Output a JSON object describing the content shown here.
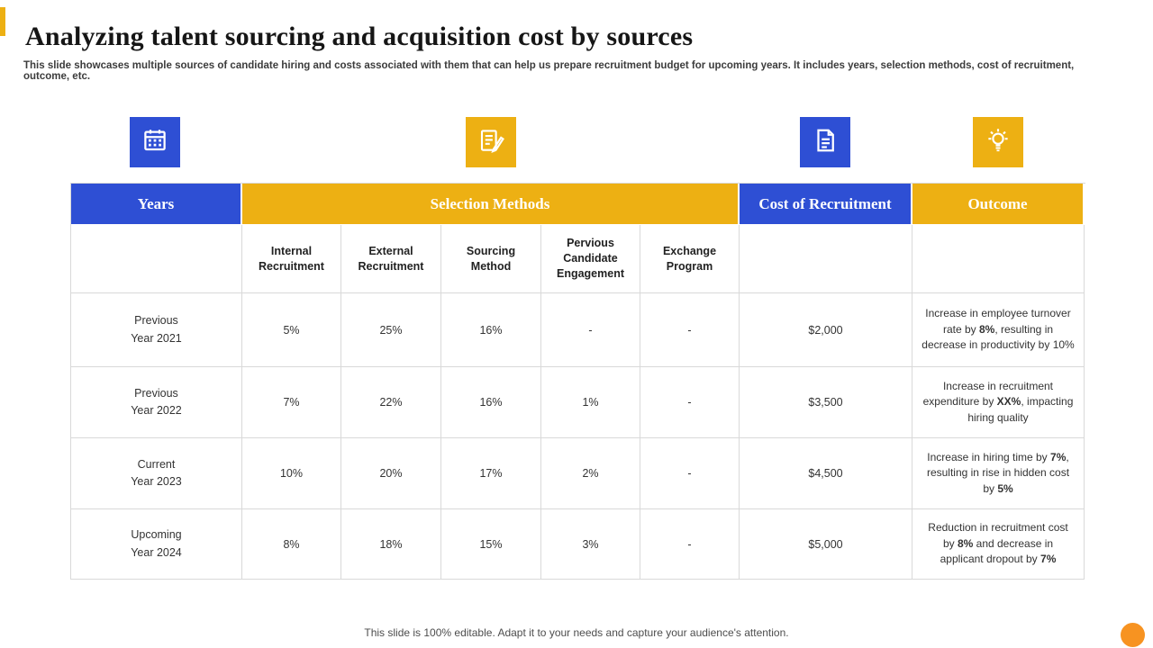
{
  "slide": {
    "title": "Analyzing talent sourcing and acquisition cost by sources",
    "subtitle": "This slide showcases multiple sources of candidate hiring and costs associated with them that can help us prepare recruitment budget for upcoming years. It includes years, selection methods, cost of recruitment, outcome, etc.",
    "footer": "This slide is 100% editable. Adapt it to your needs and capture your audience's attention."
  },
  "colors": {
    "blue": "#2e4fd4",
    "gold": "#edb013",
    "orange": "#f79321"
  },
  "icons": [
    {
      "name": "calendar-icon",
      "background": "blue"
    },
    {
      "name": "resume-pencil-icon",
      "background": "gold"
    },
    {
      "name": "cost-document-icon",
      "background": "blue"
    },
    {
      "name": "idea-bulb-icon",
      "background": "gold"
    }
  ],
  "table": {
    "header": {
      "years": "Years",
      "selection_methods": "Selection Methods",
      "cost": "Cost of Recruitment",
      "outcome": "Outcome"
    },
    "subheaders": [
      "Internal Recruitment",
      "External Recruitment",
      "Sourcing Method",
      "Pervious Candidate Engagement",
      "Exchange Program"
    ],
    "rows": [
      {
        "year": "Previous\nYear 2021",
        "values": [
          "5%",
          "25%",
          "16%",
          "-",
          "-"
        ],
        "cost": "$2,000",
        "outcome": [
          {
            "t": "Increase in employee turnover rate by "
          },
          {
            "t": "8%",
            "b": true
          },
          {
            "t": ", resulting in decrease in productivity by 10%"
          }
        ]
      },
      {
        "year": "Previous\nYear 2022",
        "values": [
          "7%",
          "22%",
          "16%",
          "1%",
          "-"
        ],
        "cost": "$3,500",
        "outcome": [
          {
            "t": "Increase in recruitment expenditure by "
          },
          {
            "t": "XX%",
            "b": true
          },
          {
            "t": ", impacting hiring quality"
          }
        ]
      },
      {
        "year": "Current\nYear 2023",
        "values": [
          "10%",
          "20%",
          "17%",
          "2%",
          "-"
        ],
        "cost": "$4,500",
        "outcome": [
          {
            "t": "Increase in hiring time by "
          },
          {
            "t": "7%",
            "b": true
          },
          {
            "t": ", resulting in rise in hidden cost by "
          },
          {
            "t": "5%",
            "b": true
          }
        ]
      },
      {
        "year": "Upcoming\nYear 2024",
        "values": [
          "8%",
          "18%",
          "15%",
          "3%",
          "-"
        ],
        "cost": "$5,000",
        "outcome": [
          {
            "t": "Reduction in recruitment cost by "
          },
          {
            "t": "8%",
            "b": true
          },
          {
            "t": " and decrease in applicant dropout by "
          },
          {
            "t": "7%",
            "b": true
          }
        ]
      }
    ]
  }
}
